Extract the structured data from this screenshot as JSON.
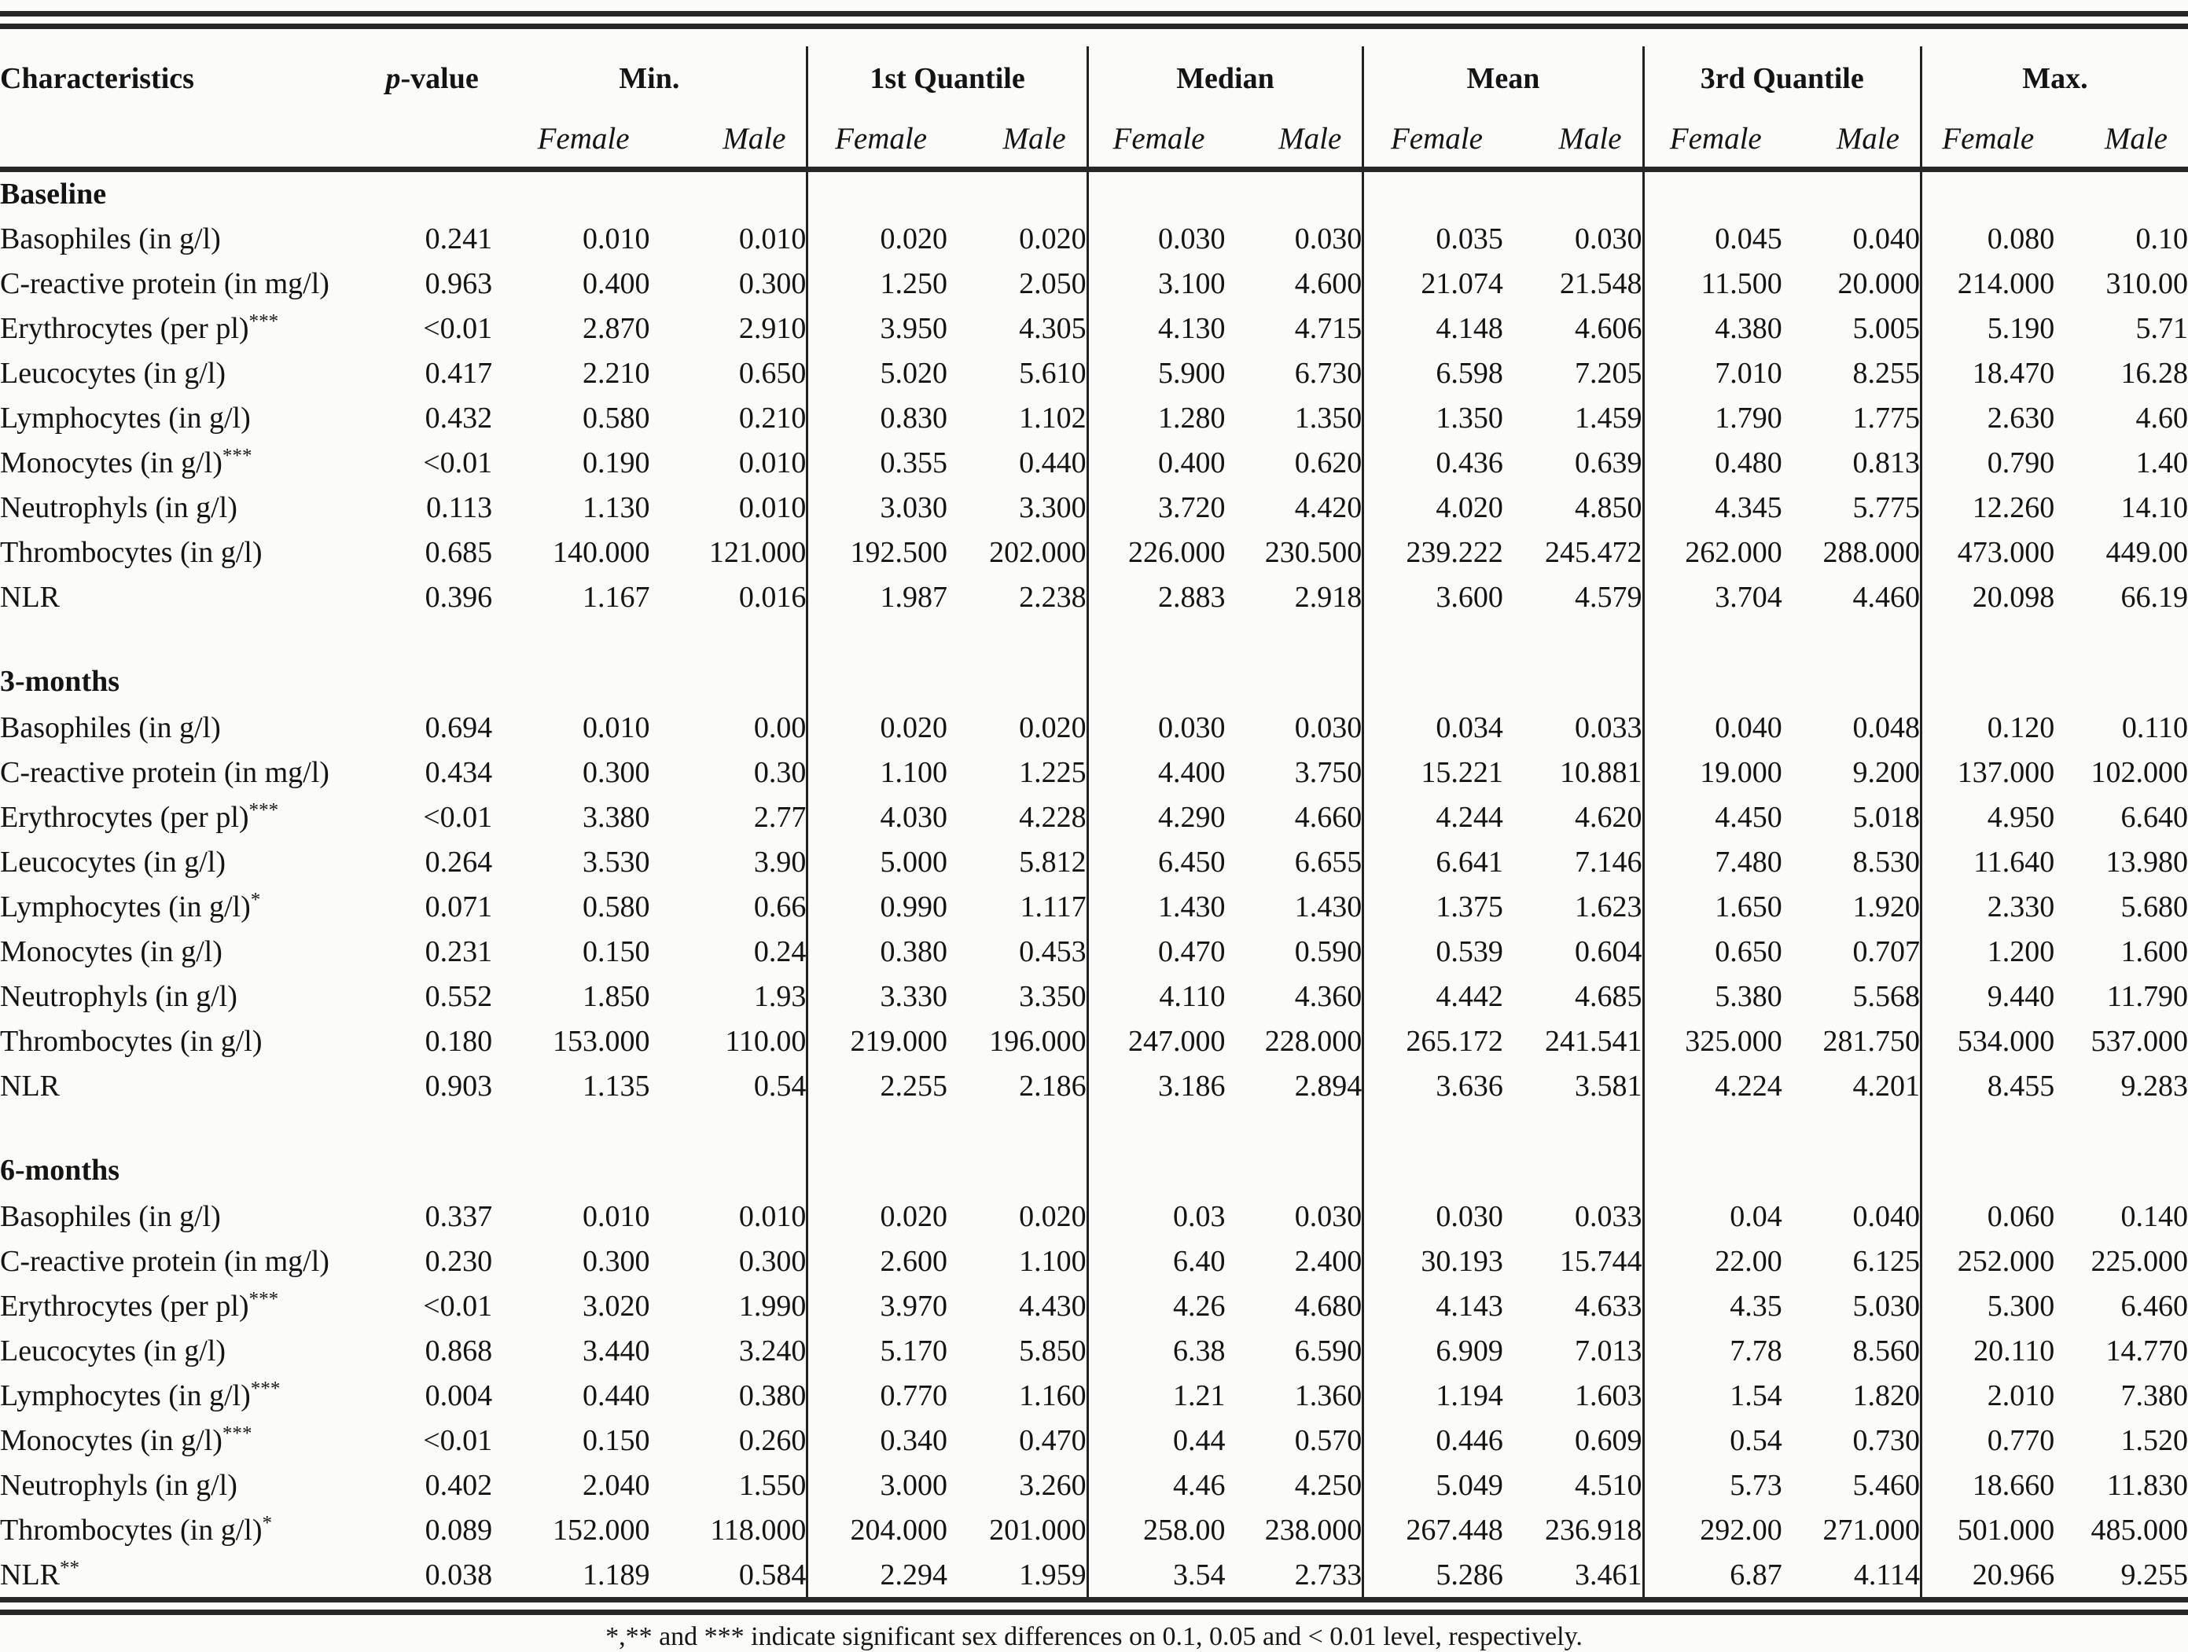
{
  "table": {
    "char_header": "Characteristics",
    "pvalue_header": {
      "italic_part": "p",
      "rest_part": "-value"
    },
    "groups": [
      {
        "label": "Min."
      },
      {
        "label": "1st Quantile"
      },
      {
        "label": "Median"
      },
      {
        "label": "Mean"
      },
      {
        "label": "3rd Quantile"
      },
      {
        "label": "Max."
      }
    ],
    "subheaders": {
      "female": "Female",
      "male": "Male"
    },
    "sections": [
      {
        "title": "Baseline",
        "rows": [
          {
            "label": "Basophiles (in g/l)",
            "sup": "",
            "p": "0.241",
            "values": [
              "0.010",
              "0.010",
              "0.020",
              "0.020",
              "0.030",
              "0.030",
              "0.035",
              "0.030",
              "0.045",
              "0.040",
              "0.080",
              "0.10"
            ]
          },
          {
            "label": "C-reactive protein (in mg/l)",
            "sup": "",
            "p": "0.963",
            "values": [
              "0.400",
              "0.300",
              "1.250",
              "2.050",
              "3.100",
              "4.600",
              "21.074",
              "21.548",
              "11.500",
              "20.000",
              "214.000",
              "310.00"
            ]
          },
          {
            "label": "Erythrocytes (per pl)",
            "sup": "***",
            "p": "<0.01",
            "values": [
              "2.870",
              "2.910",
              "3.950",
              "4.305",
              "4.130",
              "4.715",
              "4.148",
              "4.606",
              "4.380",
              "5.005",
              "5.190",
              "5.71"
            ]
          },
          {
            "label": "Leucocytes (in g/l)",
            "sup": "",
            "p": "0.417",
            "values": [
              "2.210",
              "0.650",
              "5.020",
              "5.610",
              "5.900",
              "6.730",
              "6.598",
              "7.205",
              "7.010",
              "8.255",
              "18.470",
              "16.28"
            ]
          },
          {
            "label": "Lymphocytes (in g/l)",
            "sup": "",
            "p": "0.432",
            "values": [
              "0.580",
              "0.210",
              "0.830",
              "1.102",
              "1.280",
              "1.350",
              "1.350",
              "1.459",
              "1.790",
              "1.775",
              "2.630",
              "4.60"
            ]
          },
          {
            "label": "Monocytes (in g/l)",
            "sup": "***",
            "p": "<0.01",
            "values": [
              "0.190",
              "0.010",
              "0.355",
              "0.440",
              "0.400",
              "0.620",
              "0.436",
              "0.639",
              "0.480",
              "0.813",
              "0.790",
              "1.40"
            ]
          },
          {
            "label": "Neutrophyls (in g/l)",
            "sup": "",
            "p": "0.113",
            "values": [
              "1.130",
              "0.010",
              "3.030",
              "3.300",
              "3.720",
              "4.420",
              "4.020",
              "4.850",
              "4.345",
              "5.775",
              "12.260",
              "14.10"
            ]
          },
          {
            "label": "Thrombocytes (in g/l)",
            "sup": "",
            "p": "0.685",
            "values": [
              "140.000",
              "121.000",
              "192.500",
              "202.000",
              "226.000",
              "230.500",
              "239.222",
              "245.472",
              "262.000",
              "288.000",
              "473.000",
              "449.00"
            ]
          },
          {
            "label": "NLR",
            "sup": "",
            "p": "0.396",
            "values": [
              "1.167",
              "0.016",
              "1.987",
              "2.238",
              "2.883",
              "2.918",
              "3.600",
              "4.579",
              "3.704",
              "4.460",
              "20.098",
              "66.19"
            ]
          }
        ]
      },
      {
        "title": "3-months",
        "rows": [
          {
            "label": "Basophiles (in g/l)",
            "sup": "",
            "p": "0.694",
            "values": [
              "0.010",
              "0.00",
              "0.020",
              "0.020",
              "0.030",
              "0.030",
              "0.034",
              "0.033",
              "0.040",
              "0.048",
              "0.120",
              "0.110"
            ]
          },
          {
            "label": "C-reactive protein (in mg/l)",
            "sup": "",
            "p": "0.434",
            "values": [
              "0.300",
              "0.30",
              "1.100",
              "1.225",
              "4.400",
              "3.750",
              "15.221",
              "10.881",
              "19.000",
              "9.200",
              "137.000",
              "102.000"
            ]
          },
          {
            "label": "Erythrocytes (per pl)",
            "sup": "***",
            "p": "<0.01",
            "values": [
              "3.380",
              "2.77",
              "4.030",
              "4.228",
              "4.290",
              "4.660",
              "4.244",
              "4.620",
              "4.450",
              "5.018",
              "4.950",
              "6.640"
            ]
          },
          {
            "label": "Leucocytes (in g/l)",
            "sup": "",
            "p": "0.264",
            "values": [
              "3.530",
              "3.90",
              "5.000",
              "5.812",
              "6.450",
              "6.655",
              "6.641",
              "7.146",
              "7.480",
              "8.530",
              "11.640",
              "13.980"
            ]
          },
          {
            "label": "Lymphocytes (in g/l)",
            "sup": "*",
            "p": "0.071",
            "values": [
              "0.580",
              "0.66",
              "0.990",
              "1.117",
              "1.430",
              "1.430",
              "1.375",
              "1.623",
              "1.650",
              "1.920",
              "2.330",
              "5.680"
            ]
          },
          {
            "label": "Monocytes (in g/l)",
            "sup": "",
            "p": "0.231",
            "values": [
              "0.150",
              "0.24",
              "0.380",
              "0.453",
              "0.470",
              "0.590",
              "0.539",
              "0.604",
              "0.650",
              "0.707",
              "1.200",
              "1.600"
            ]
          },
          {
            "label": "Neutrophyls (in g/l)",
            "sup": "",
            "p": "0.552",
            "values": [
              "1.850",
              "1.93",
              "3.330",
              "3.350",
              "4.110",
              "4.360",
              "4.442",
              "4.685",
              "5.380",
              "5.568",
              "9.440",
              "11.790"
            ]
          },
          {
            "label": "Thrombocytes (in g/l)",
            "sup": "",
            "p": "0.180",
            "values": [
              "153.000",
              "110.00",
              "219.000",
              "196.000",
              "247.000",
              "228.000",
              "265.172",
              "241.541",
              "325.000",
              "281.750",
              "534.000",
              "537.000"
            ]
          },
          {
            "label": "NLR",
            "sup": "",
            "p": "0.903",
            "values": [
              "1.135",
              "0.54",
              "2.255",
              "2.186",
              "3.186",
              "2.894",
              "3.636",
              "3.581",
              "4.224",
              "4.201",
              "8.455",
              "9.283"
            ]
          }
        ]
      },
      {
        "title": "6-months",
        "rows": [
          {
            "label": "Basophiles (in g/l)",
            "sup": "",
            "p": "0.337",
            "values": [
              "0.010",
              "0.010",
              "0.020",
              "0.020",
              "0.03",
              "0.030",
              "0.030",
              "0.033",
              "0.04",
              "0.040",
              "0.060",
              "0.140"
            ]
          },
          {
            "label": "C-reactive protein (in mg/l)",
            "sup": "",
            "p": "0.230",
            "values": [
              "0.300",
              "0.300",
              "2.600",
              "1.100",
              "6.40",
              "2.400",
              "30.193",
              "15.744",
              "22.00",
              "6.125",
              "252.000",
              "225.000"
            ]
          },
          {
            "label": "Erythrocytes (per pl)",
            "sup": "***",
            "p": "<0.01",
            "values": [
              "3.020",
              "1.990",
              "3.970",
              "4.430",
              "4.26",
              "4.680",
              "4.143",
              "4.633",
              "4.35",
              "5.030",
              "5.300",
              "6.460"
            ]
          },
          {
            "label": "Leucocytes (in g/l)",
            "sup": "",
            "p": "0.868",
            "values": [
              "3.440",
              "3.240",
              "5.170",
              "5.850",
              "6.38",
              "6.590",
              "6.909",
              "7.013",
              "7.78",
              "8.560",
              "20.110",
              "14.770"
            ]
          },
          {
            "label": "Lymphocytes (in g/l)",
            "sup": "***",
            "p": "0.004",
            "values": [
              "0.440",
              "0.380",
              "0.770",
              "1.160",
              "1.21",
              "1.360",
              "1.194",
              "1.603",
              "1.54",
              "1.820",
              "2.010",
              "7.380"
            ]
          },
          {
            "label": "Monocytes (in g/l)",
            "sup": "***",
            "p": "<0.01",
            "values": [
              "0.150",
              "0.260",
              "0.340",
              "0.470",
              "0.44",
              "0.570",
              "0.446",
              "0.609",
              "0.54",
              "0.730",
              "0.770",
              "1.520"
            ]
          },
          {
            "label": "Neutrophyls (in g/l)",
            "sup": "",
            "p": "0.402",
            "values": [
              "2.040",
              "1.550",
              "3.000",
              "3.260",
              "4.46",
              "4.250",
              "5.049",
              "4.510",
              "5.73",
              "5.460",
              "18.660",
              "11.830"
            ]
          },
          {
            "label": "Thrombocytes (in g/l)",
            "sup": "*",
            "p": "0.089",
            "values": [
              "152.000",
              "118.000",
              "204.000",
              "201.000",
              "258.00",
              "238.000",
              "267.448",
              "236.918",
              "292.00",
              "271.000",
              "501.000",
              "485.000"
            ]
          },
          {
            "label": "NLR",
            "sup": "**",
            "p": "0.038",
            "values": [
              "1.189",
              "0.584",
              "2.294",
              "1.959",
              "3.54",
              "2.733",
              "5.286",
              "3.461",
              "6.87",
              "4.114",
              "20.966",
              "9.255"
            ]
          }
        ]
      }
    ],
    "footnote": "*,** and *** indicate significant sex differences on 0.1, 0.05 and < 0.01 level, respectively."
  }
}
